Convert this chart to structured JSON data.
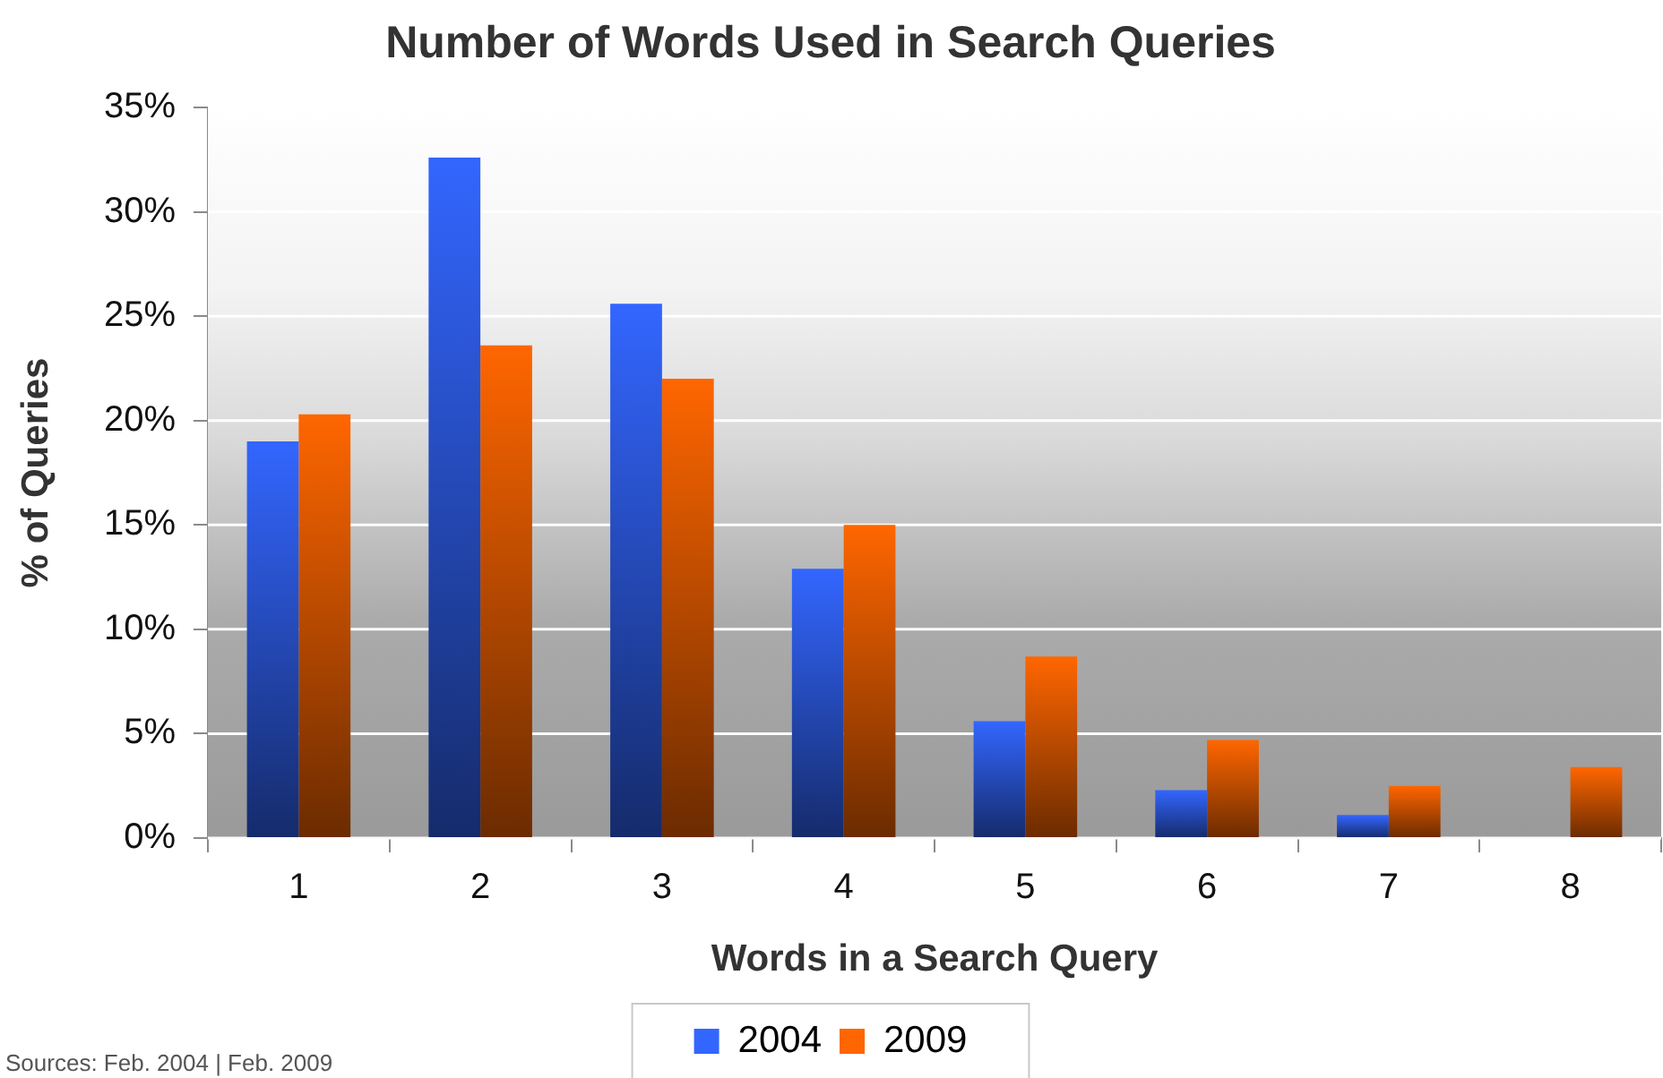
{
  "chart_data": {
    "type": "bar",
    "title": "Number of Words Used in Search Queries",
    "xlabel": "Words in a Search Query",
    "ylabel": "% of Queries",
    "categories": [
      "1",
      "2",
      "3",
      "4",
      "5",
      "6",
      "7",
      "8"
    ],
    "series": [
      {
        "name": "2004",
        "color": "#3366ff",
        "values": [
          19.0,
          32.6,
          25.6,
          12.9,
          5.6,
          2.3,
          1.1,
          null
        ]
      },
      {
        "name": "2009",
        "color": "#ff6600",
        "values": [
          20.3,
          23.6,
          22.0,
          15.0,
          8.7,
          4.7,
          2.5,
          3.4
        ]
      }
    ],
    "ylim": [
      0,
      35
    ],
    "yticks": [
      {
        "value": 0,
        "label": "0%"
      },
      {
        "value": 5,
        "label": "5%"
      },
      {
        "value": 10,
        "label": "10%"
      },
      {
        "value": 15,
        "label": "15%"
      },
      {
        "value": 20,
        "label": "20%"
      },
      {
        "value": 25,
        "label": "25%"
      },
      {
        "value": 30,
        "label": "30%"
      },
      {
        "value": 35,
        "label": "35%"
      }
    ],
    "grid": "y",
    "legend": "bottom",
    "annotations": [
      "Sources: Feb. 2004 | Feb. 2009"
    ]
  }
}
